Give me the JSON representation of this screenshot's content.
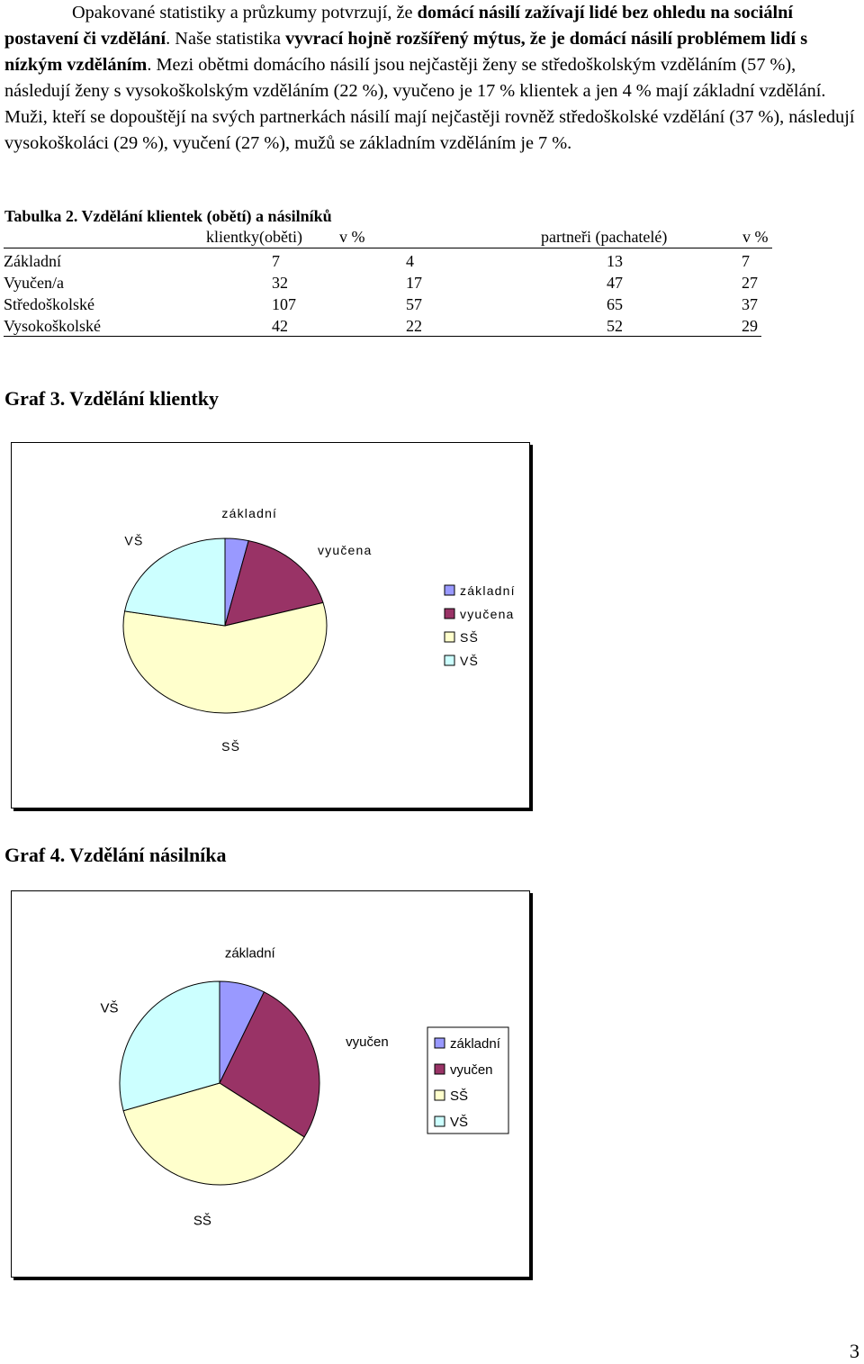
{
  "paragraph": {
    "s1": "Opakované statistiky a průzkumy potvrzují, že ",
    "s1b": "domácí násilí zažívají lidé bez ohledu na sociální postavení či vzdělání",
    "s2": ". Naše statistika ",
    "s2b": "vyvrací hojně rozšířený mýtus, že je domácí násilí problémem lidí s nízkým vzděláním",
    "s3": ". Mezi obětmi domácího násilí jsou nejčastěji ženy se středoškolským vzděláním (57 %), následují ženy s vysokoškolským vzděláním (22 %), vyučeno je 17 % klientek a jen 4 % mají základní vzdělání. Muži, kteří se dopouštějí na svých partnerkách násilí mají nejčastěji rovněž středoškolské vzdělání (37 %), následují vysokoškoláci (29 %), vyučení (27 %), mužů se základním vzděláním je 7 %."
  },
  "table": {
    "caption": "Tabulka 2. Vzdělání klientek (obětí) a násilníků",
    "headers": [
      "",
      "klientky(oběti)",
      "v %",
      "partneři (pachatelé)",
      "v %"
    ],
    "rows": [
      [
        "Základní",
        "7",
        "4",
        "13",
        "7"
      ],
      [
        "Vyučen/a",
        "32",
        "17",
        "47",
        "27"
      ],
      [
        "Středoškolské",
        "107",
        "57",
        "65",
        "37"
      ],
      [
        "Vysokoškolské",
        "42",
        "22",
        "52",
        "29"
      ]
    ]
  },
  "colors": {
    "zakladni": "#9999ff",
    "vyucen": "#993366",
    "ss": "#ffffcc",
    "vs": "#ccffff"
  },
  "chart_data": [
    {
      "type": "pie",
      "title": "Graf 3. Vzdělání klientky",
      "categories": [
        "základní",
        "vyučena",
        "SŠ",
        "VŠ"
      ],
      "values": [
        7,
        32,
        107,
        42
      ],
      "legend": [
        "základní",
        "vyučena",
        "SŠ",
        "VŠ"
      ],
      "legend_position": "right"
    },
    {
      "type": "pie",
      "title": "Graf 4. Vzdělání násilníka",
      "categories": [
        "základní",
        "vyučen",
        "SŠ",
        "VŠ"
      ],
      "values": [
        13,
        47,
        65,
        52
      ],
      "legend": [
        "základní",
        "vyučen",
        "SŠ",
        "VŠ"
      ],
      "legend_position": "right"
    }
  ],
  "page_number": "3"
}
